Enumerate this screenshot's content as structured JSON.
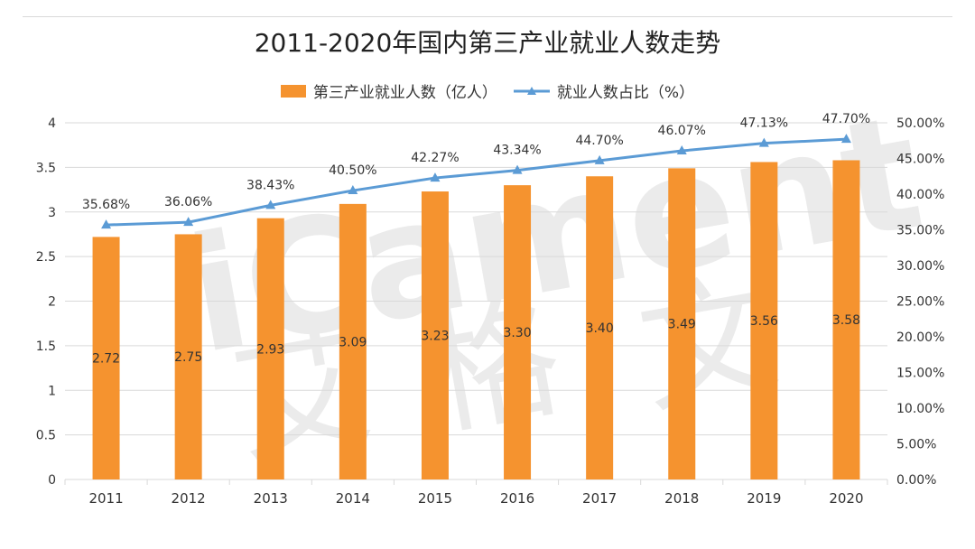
{
  "chart_data": {
    "type": "bar+line",
    "title": "2011-2020年国内第三产业就业人数走势",
    "categories": [
      "2011",
      "2012",
      "2013",
      "2014",
      "2015",
      "2016",
      "2017",
      "2018",
      "2019",
      "2020"
    ],
    "series": [
      {
        "name": "第三产业就业人数（亿人）",
        "type": "bar",
        "axis": "left",
        "values": [
          2.72,
          2.75,
          2.93,
          3.09,
          3.23,
          3.3,
          3.4,
          3.49,
          3.56,
          3.58
        ],
        "labels": [
          "2.72",
          "2.75",
          "2.93",
          "3.09",
          "3.23",
          "3.30",
          "3.40",
          "3.49",
          "3.56",
          "3.58"
        ]
      },
      {
        "name": "就业人数占比（%）",
        "type": "line",
        "axis": "right",
        "values": [
          35.68,
          36.06,
          38.43,
          40.5,
          42.27,
          43.34,
          44.7,
          46.07,
          47.13,
          47.7
        ],
        "labels": [
          "35.68%",
          "36.06%",
          "38.43%",
          "40.50%",
          "42.27%",
          "43.34%",
          "44.70%",
          "46.07%",
          "47.13%",
          "47.70%"
        ]
      }
    ],
    "y_left": {
      "min": 0,
      "max": 4,
      "ticks": [
        "0",
        "0.5",
        "1",
        "1.5",
        "2",
        "2.5",
        "3",
        "3.5",
        "4"
      ]
    },
    "y_right": {
      "min": 0,
      "max": 50,
      "ticks": [
        "0.00%",
        "5.00%",
        "10.00%",
        "15.00%",
        "20.00%",
        "25.00%",
        "30.00%",
        "35.00%",
        "40.00%",
        "45.00%",
        "50.00%"
      ]
    },
    "grid": true,
    "legend_position": "top"
  },
  "watermark": {
    "latin": "iCament",
    "chars": [
      "艾",
      "格",
      "文"
    ]
  },
  "colors": {
    "bar": "#f5932f",
    "line": "#5b9bd5",
    "grid": "#d9d9d9",
    "axis_text": "#333333",
    "watermark": "#ebebeb",
    "watermark_accent": "#fbe3c8"
  }
}
